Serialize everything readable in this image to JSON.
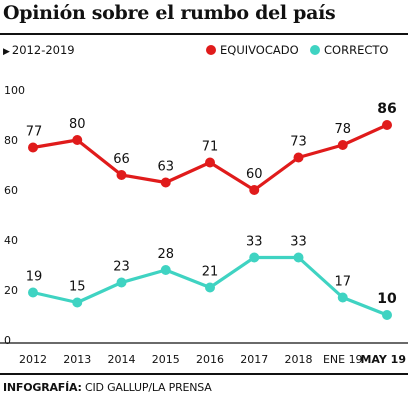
{
  "chart_data": {
    "type": "line",
    "title": "Opinión sobre el rumbo del país",
    "subtitle": "2012-2019",
    "categories": [
      "2012",
      "2013",
      "2014",
      "2015",
      "2016",
      "2017",
      "2018",
      "ENE 19",
      "MAY 19"
    ],
    "y_ticks": [
      "100",
      "80",
      "60",
      "40",
      "20",
      "0"
    ],
    "ylim": [
      0,
      100
    ],
    "grid": false,
    "legend_position": "top-right",
    "series": [
      {
        "name": "EQUIVOCADO",
        "color": "#e01b1b",
        "values": [
          77,
          80,
          66,
          63,
          71,
          60,
          73,
          78,
          86
        ]
      },
      {
        "name": "CORRECTO",
        "color": "#3fd3c2",
        "values": [
          19,
          15,
          23,
          28,
          21,
          33,
          33,
          17,
          10
        ]
      }
    ]
  },
  "source": {
    "label": "INFOGRAFÍA:",
    "text": "CID GALLUP/LA PRENSA"
  }
}
